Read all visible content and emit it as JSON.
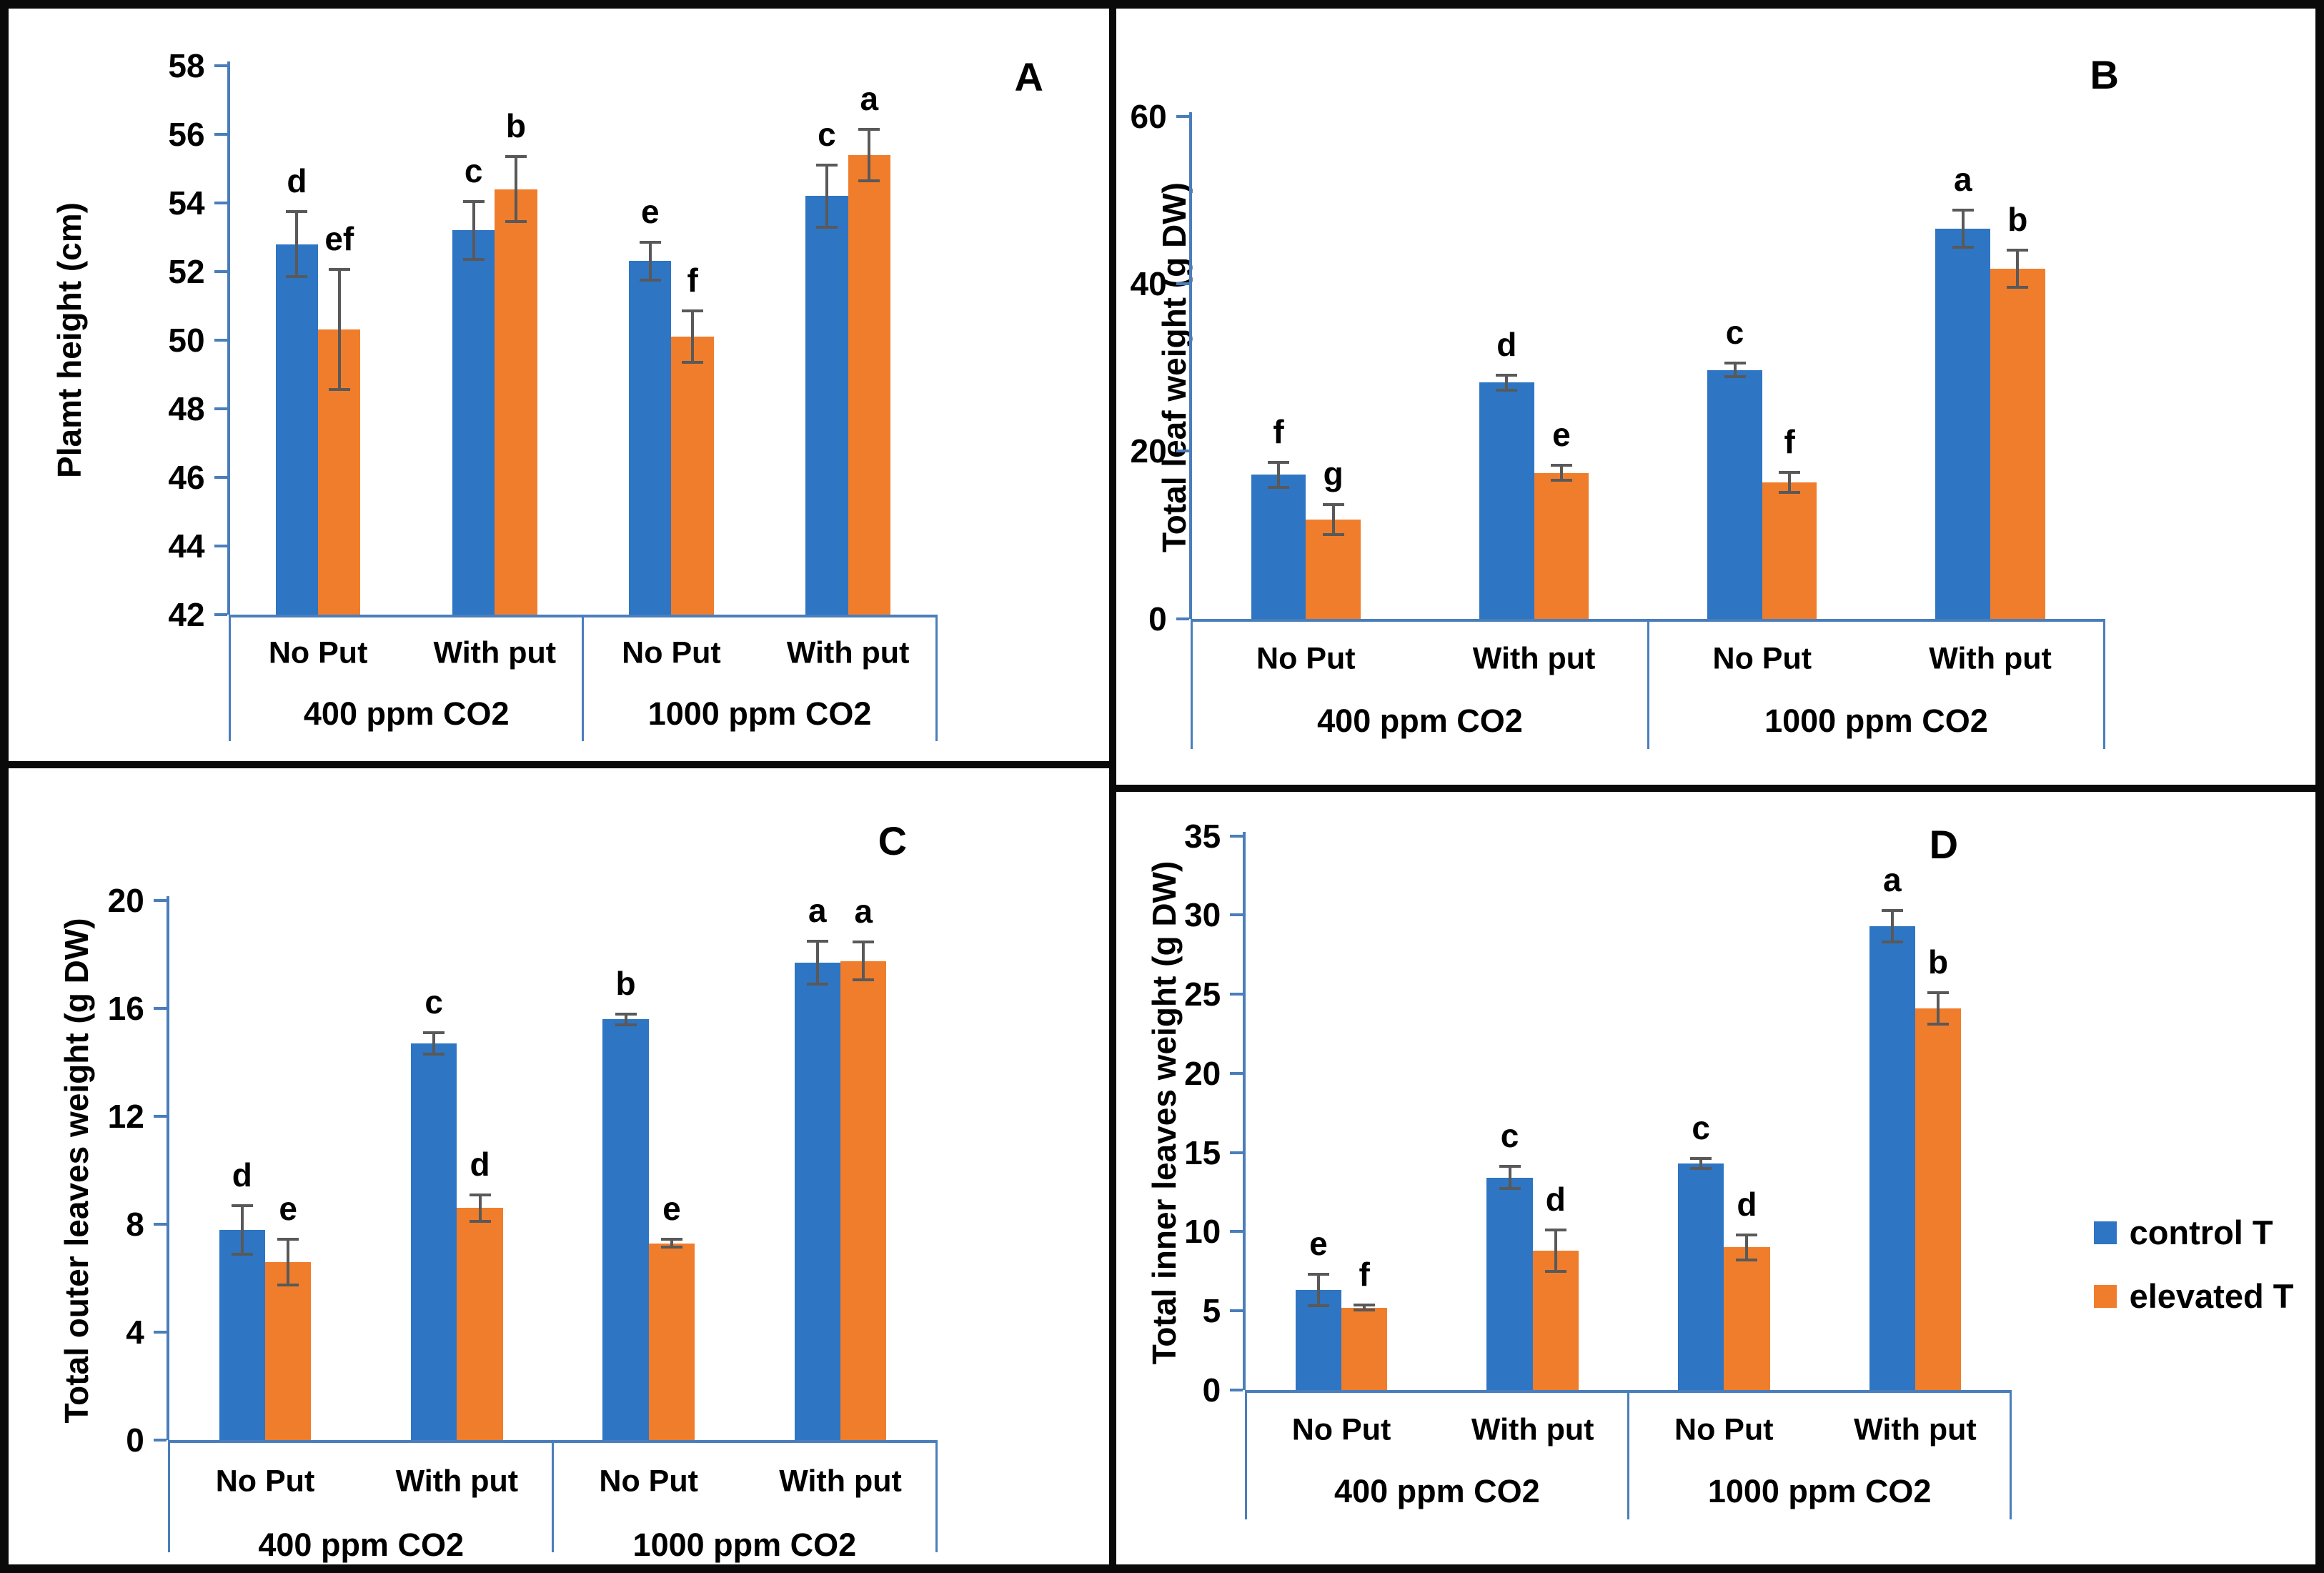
{
  "colors": {
    "control": "#2E75C3",
    "elevated": "#F07D2B",
    "axis": "#4A7EBB",
    "error": "#595959",
    "frame": "#0A0A0A"
  },
  "legend": {
    "items": [
      {
        "label": "control T",
        "series": "control"
      },
      {
        "label": "elevated T",
        "series": "elevated"
      }
    ]
  },
  "chart_data": [
    {
      "id": "A",
      "type": "bar",
      "panel_label": "A",
      "ylabel": "Plamt height (cm)",
      "ymin": 42,
      "ymax": 58,
      "ystep": 2,
      "yticks": [
        58,
        56,
        54,
        52,
        50,
        48,
        46,
        44,
        42
      ],
      "group_labels": [
        "400 ppm CO2",
        "1000 ppm CO2"
      ],
      "cat_labels": [
        "No Put",
        "With put",
        "No Put",
        "With put"
      ],
      "legend_position": "none",
      "grid": false,
      "series": [
        {
          "name": "control T",
          "key": "control",
          "values": [
            52.8,
            53.2,
            52.3,
            54.2
          ],
          "errors": [
            0.95,
            0.85,
            0.55,
            0.9
          ],
          "letters": [
            "d",
            "c",
            "e",
            "c"
          ]
        },
        {
          "name": "elevated T",
          "key": "elevated",
          "values": [
            50.3,
            54.4,
            50.1,
            55.4
          ],
          "errors": [
            1.75,
            0.95,
            0.75,
            0.75
          ],
          "letters": [
            "ef",
            "b",
            "f",
            "a"
          ]
        }
      ]
    },
    {
      "id": "B",
      "type": "bar",
      "panel_label": "B",
      "ylabel": "Total leaf weight (g DW)",
      "ymin": 0,
      "ymax": 60,
      "ystep": 20,
      "yticks": [
        60,
        40,
        20,
        0
      ],
      "group_labels": [
        "400 ppm CO2",
        "1000 ppm CO2"
      ],
      "cat_labels": [
        "No Put",
        "With put",
        "No Put",
        "With put"
      ],
      "legend_position": "none",
      "grid": false,
      "series": [
        {
          "name": "control T",
          "key": "control",
          "values": [
            17.2,
            28.2,
            29.7,
            46.6
          ],
          "errors": [
            1.5,
            0.9,
            0.8,
            2.2
          ],
          "letters": [
            "f",
            "d",
            "c",
            "a"
          ]
        },
        {
          "name": "elevated T",
          "key": "elevated",
          "values": [
            11.8,
            17.4,
            16.3,
            41.8
          ],
          "errors": [
            1.8,
            0.9,
            1.2,
            2.2
          ],
          "letters": [
            "g",
            "e",
            "f",
            "b"
          ]
        }
      ]
    },
    {
      "id": "C",
      "type": "bar",
      "panel_label": "C",
      "ylabel": "Total outer leaves weight (g DW)",
      "ymin": 0,
      "ymax": 20,
      "ystep": 4,
      "yticks": [
        20,
        16,
        12,
        8,
        4,
        0
      ],
      "group_labels": [
        "400 ppm CO2",
        "1000 ppm CO2"
      ],
      "cat_labels": [
        "No Put",
        "With put",
        "No Put",
        "With put"
      ],
      "legend_position": "none",
      "grid": false,
      "series": [
        {
          "name": "control T",
          "key": "control",
          "values": [
            7.8,
            14.7,
            15.6,
            17.7
          ],
          "errors": [
            0.9,
            0.4,
            0.2,
            0.8
          ],
          "letters": [
            "d",
            "c",
            "b",
            "a"
          ]
        },
        {
          "name": "elevated T",
          "key": "elevated",
          "values": [
            6.6,
            8.6,
            7.3,
            17.75
          ],
          "errors": [
            0.85,
            0.5,
            0.15,
            0.7
          ],
          "letters": [
            "e",
            "d",
            "e",
            "a"
          ]
        }
      ]
    },
    {
      "id": "D",
      "type": "bar",
      "panel_label": "D",
      "ylabel": "Total inner leaves weight (g DW)",
      "ymin": 0,
      "ymax": 35,
      "ystep": 5,
      "yticks": [
        35,
        30,
        25,
        20,
        15,
        10,
        5,
        0
      ],
      "group_labels": [
        "400 ppm CO2",
        "1000 ppm CO2"
      ],
      "cat_labels": [
        "No Put",
        "With put",
        "No Put",
        "With put"
      ],
      "legend_position": "right",
      "grid": false,
      "series": [
        {
          "name": "control T",
          "key": "control",
          "values": [
            6.3,
            13.4,
            14.3,
            29.3
          ],
          "errors": [
            1.0,
            0.7,
            0.3,
            1.0
          ],
          "letters": [
            "e",
            "c",
            "c",
            "a"
          ]
        },
        {
          "name": "elevated T",
          "key": "elevated",
          "values": [
            5.2,
            8.8,
            9.0,
            24.1
          ],
          "errors": [
            0.15,
            1.3,
            0.8,
            1.0
          ],
          "letters": [
            "f",
            "d",
            "d",
            "b"
          ]
        }
      ]
    }
  ]
}
